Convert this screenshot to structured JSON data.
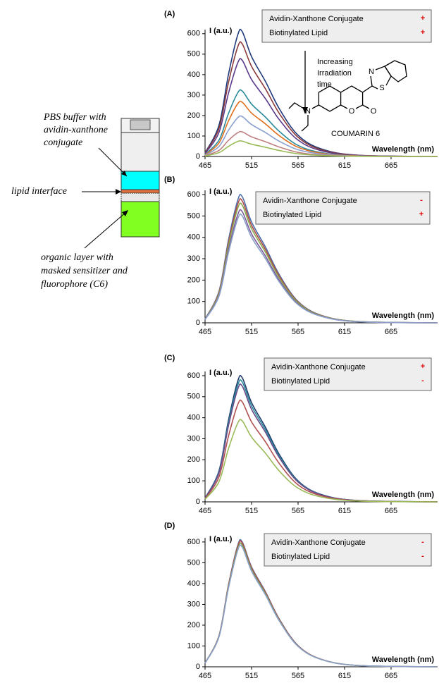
{
  "diagram": {
    "labels": [
      [
        "PBS buffer with",
        "avidin-xanthone",
        "conjugate"
      ],
      [
        "lipid interface"
      ],
      [
        "organic layer with",
        "masked sensitizer and",
        "fluorophore (C6)"
      ]
    ]
  },
  "molecule": {
    "name": "COUMARIN 6",
    "atoms": [
      "N",
      "S",
      "N",
      "O",
      "O"
    ]
  },
  "chart_data": [
    {
      "type": "line",
      "panel": "(A)",
      "ylabel": "I (a.u.)",
      "xlabel": "Wavelength (nm)",
      "x": [
        465,
        480,
        490,
        500,
        505,
        515,
        530,
        545,
        565,
        590,
        630,
        715
      ],
      "xlim": [
        465,
        715
      ],
      "xticks": [
        465,
        515,
        565,
        615,
        665
      ],
      "ylim": [
        0,
        620
      ],
      "yticks": [
        0,
        100,
        200,
        300,
        400,
        500,
        600
      ],
      "legend": [
        {
          "label": "Avidin-Xanthone Conjugate",
          "sign": "+"
        },
        {
          "label": "Biotinylated Lipid",
          "sign": "+"
        }
      ],
      "annotations": [
        "Increasing",
        "Irradiation",
        "time"
      ],
      "series": [
        {
          "color": "#1f3a7a",
          "values": [
            18,
            153,
            397,
            592,
            610,
            488,
            366,
            232,
            104,
            37,
            6,
            0
          ]
        },
        {
          "color": "#8b3a3a",
          "values": [
            17,
            138,
            358,
            534,
            550,
            440,
            330,
            209,
            94,
            33,
            6,
            0
          ]
        },
        {
          "color": "#5a3a8a",
          "values": [
            14,
            118,
            306,
            456,
            470,
            376,
            282,
            179,
            80,
            28,
            5,
            0
          ]
        },
        {
          "color": "#2a8a9a",
          "values": [
            10,
            80,
            208,
            310,
            320,
            256,
            192,
            122,
            54,
            19,
            3,
            0
          ]
        },
        {
          "color": "#e07020",
          "values": [
            8,
            66,
            172,
            257,
            265,
            212,
            159,
            101,
            45,
            16,
            3,
            0
          ]
        },
        {
          "color": "#8aa0d0",
          "values": [
            6,
            49,
            127,
            189,
            195,
            156,
            117,
            74,
            33,
            12,
            2,
            0
          ]
        },
        {
          "color": "#c08080",
          "values": [
            4,
            30,
            78,
            116,
            120,
            96,
            72,
            46,
            20,
            7,
            1,
            0
          ]
        },
        {
          "color": "#9bbb59",
          "values": [
            2,
            19,
            49,
            73,
            75,
            60,
            45,
            29,
            13,
            5,
            1,
            0
          ]
        }
      ]
    },
    {
      "type": "line",
      "panel": "(B)",
      "ylabel": "I (a.u.)",
      "xlabel": "Wavelength (nm)",
      "x": [
        465,
        480,
        490,
        500,
        505,
        515,
        530,
        545,
        565,
        590,
        630,
        715
      ],
      "xlim": [
        465,
        715
      ],
      "xticks": [
        465,
        515,
        565,
        615,
        665
      ],
      "ylim": [
        0,
        620
      ],
      "yticks": [
        0,
        100,
        200,
        300,
        400,
        500,
        600
      ],
      "legend": [
        {
          "label": "Avidin-Xanthone Conjugate",
          "sign": "-"
        },
        {
          "label": "Biotinylated Lipid",
          "sign": "+"
        }
      ],
      "series": [
        {
          "color": "#4f6fa8",
          "values": [
            18,
            148,
            384,
            572,
            590,
            472,
            354,
            224,
            100,
            35,
            6,
            0
          ]
        },
        {
          "color": "#b04a48",
          "values": [
            17,
            143,
            371,
            553,
            570,
            456,
            342,
            217,
            97,
            34,
            6,
            0
          ]
        },
        {
          "color": "#8aaa50",
          "values": [
            17,
            138,
            358,
            534,
            550,
            440,
            330,
            209,
            94,
            33,
            6,
            0
          ]
        },
        {
          "color": "#7a5a9a",
          "values": [
            16,
            130,
            338,
            504,
            520,
            416,
            312,
            198,
            88,
            31,
            5,
            0
          ]
        },
        {
          "color": "#8aa0c8",
          "values": [
            15,
            125,
            325,
            485,
            500,
            400,
            300,
            190,
            85,
            30,
            5,
            0
          ]
        }
      ]
    },
    {
      "type": "line",
      "panel": "(C)",
      "ylabel": "I (a.u.)",
      "xlabel": "Wavelength (nm)",
      "x": [
        465,
        480,
        490,
        500,
        505,
        515,
        530,
        545,
        565,
        590,
        630,
        715
      ],
      "xlim": [
        465,
        715
      ],
      "xticks": [
        465,
        515,
        565,
        615,
        665
      ],
      "ylim": [
        0,
        620
      ],
      "yticks": [
        0,
        100,
        200,
        300,
        400,
        500,
        600
      ],
      "legend": [
        {
          "label": "Avidin-Xanthone Conjugate",
          "sign": "+"
        },
        {
          "label": "Biotinylated Lipid",
          "sign": "-"
        }
      ],
      "series": [
        {
          "color": "#1f3a6a",
          "values": [
            18,
            148,
            384,
            572,
            590,
            472,
            354,
            224,
            100,
            35,
            6,
            0
          ]
        },
        {
          "color": "#2a8a9a",
          "values": [
            17,
            143,
            371,
            553,
            570,
            456,
            342,
            217,
            97,
            34,
            6,
            0
          ]
        },
        {
          "color": "#6a4a8a",
          "values": [
            17,
            138,
            358,
            534,
            550,
            440,
            330,
            209,
            94,
            33,
            6,
            0
          ]
        },
        {
          "color": "#b05050",
          "values": [
            14,
            119,
            309,
            461,
            475,
            380,
            285,
            181,
            81,
            29,
            5,
            0
          ]
        },
        {
          "color": "#9bbb59",
          "values": [
            12,
            96,
            250,
            373,
            385,
            308,
            231,
            146,
            65,
            23,
            4,
            0
          ]
        }
      ]
    },
    {
      "type": "line",
      "panel": "(D)",
      "ylabel": "I (a.u.)",
      "xlabel": "Wavelength (nm)",
      "x": [
        465,
        480,
        490,
        500,
        505,
        515,
        530,
        545,
        565,
        590,
        630,
        715
      ],
      "xlim": [
        465,
        715
      ],
      "xticks": [
        465,
        515,
        565,
        615,
        665
      ],
      "ylim": [
        0,
        620
      ],
      "yticks": [
        0,
        100,
        200,
        300,
        400,
        500,
        600
      ],
      "legend": [
        {
          "label": "Avidin-Xanthone Conjugate",
          "sign": "-"
        },
        {
          "label": "Biotinylated Lipid",
          "sign": "-"
        }
      ],
      "series": [
        {
          "color": "#4f6fa8",
          "values": [
            18,
            150,
            390,
            582,
            600,
            480,
            360,
            228,
            102,
            36,
            6,
            0
          ]
        },
        {
          "color": "#b04a48",
          "values": [
            18,
            149,
            387,
            577,
            595,
            476,
            357,
            226,
            101,
            36,
            6,
            0
          ]
        },
        {
          "color": "#7a9a50",
          "values": [
            18,
            146,
            380,
            567,
            585,
            468,
            351,
            222,
            99,
            35,
            6,
            0
          ]
        },
        {
          "color": "#8aa0c8",
          "values": [
            17,
            144,
            374,
            558,
            575,
            460,
            345,
            219,
            98,
            35,
            6,
            0
          ]
        }
      ]
    }
  ]
}
